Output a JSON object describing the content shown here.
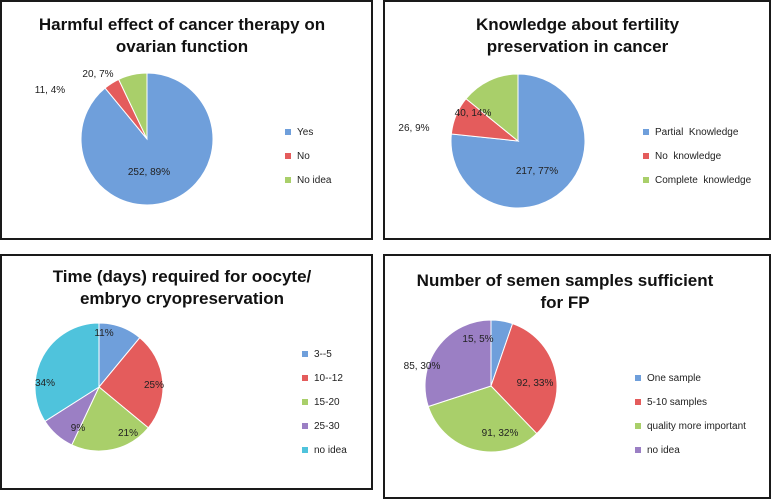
{
  "chart_data": [
    {
      "type": "pie",
      "title": "Harmful effect of cancer therapy on ovarian function",
      "title_lines": [
        "Harmful effect of cancer therapy on",
        "ovarian function"
      ],
      "categories": [
        "Yes",
        "No",
        "No idea"
      ],
      "values": [
        252,
        11,
        20
      ],
      "percent": [
        89,
        4,
        7
      ],
      "data_labels": [
        "252, 89%",
        "11, 4%",
        "20, 7%"
      ],
      "colors": [
        "#6f9fdb",
        "#e45c5c",
        "#a9cf6a"
      ],
      "legend_position": "right"
    },
    {
      "type": "pie",
      "title": "Knowledge about fertility preservation in cancer",
      "title_lines": [
        "Knowledge about fertility",
        "preservation in cancer"
      ],
      "categories": [
        "Partial  Knowledge",
        "No  knowledge",
        "Complete  knowledge"
      ],
      "values": [
        217,
        26,
        40
      ],
      "percent": [
        77,
        9,
        14
      ],
      "data_labels": [
        "217, 77%",
        "26, 9%",
        "40, 14%"
      ],
      "colors": [
        "#6f9fdb",
        "#e45c5c",
        "#a9cf6a"
      ],
      "legend_position": "right"
    },
    {
      "type": "pie",
      "title": "Time (days) required for oocyte/ embryo cryopreservation",
      "title_lines": [
        "Time (days) required for oocyte/",
        "embryo cryopreservation"
      ],
      "categories": [
        "3--5",
        "10--12",
        "15-20",
        "25-30",
        "no idea"
      ],
      "values": [
        11,
        25,
        21,
        9,
        34
      ],
      "percent": [
        11,
        25,
        21,
        9,
        34
      ],
      "data_labels": [
        "11%",
        "25%",
        "21%",
        "9%",
        "34%"
      ],
      "colors": [
        "#6f9fdb",
        "#e45c5c",
        "#a9cf6a",
        "#9b7fc4",
        "#4fc3dc"
      ],
      "legend_position": "right"
    },
    {
      "type": "pie",
      "title": "Number of semen samples sufficient for FP",
      "title_lines": [
        "Number of semen samples sufficient",
        "for FP"
      ],
      "categories": [
        "One sample",
        "5-10 samples",
        "quality more important",
        "no idea"
      ],
      "values": [
        15,
        92,
        91,
        85
      ],
      "percent": [
        5,
        33,
        32,
        30
      ],
      "data_labels": [
        "15, 5%",
        "92, 33%",
        "91, 32%",
        "85, 30%"
      ],
      "colors": [
        "#6f9fdb",
        "#e45c5c",
        "#a9cf6a",
        "#9b7fc4"
      ],
      "legend_position": "right"
    }
  ]
}
